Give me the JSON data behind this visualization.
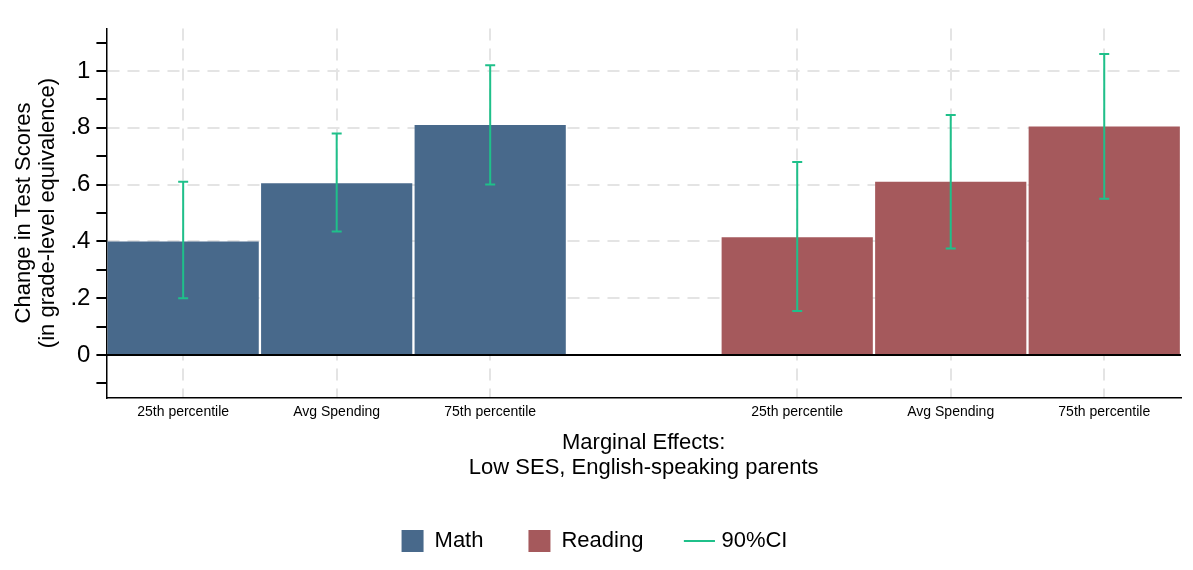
{
  "chart_data": {
    "type": "bar",
    "xlabel": "Marginal Effects:\nLow SES, English-speaking parents",
    "ylabel": "Change in Test Scores\n(in grade-level equivalence)",
    "categories": [
      "25th percentile",
      "Avg Spending",
      "75th percentile",
      null,
      "25th percentile",
      "Avg Spending",
      "75th percentile"
    ],
    "series": [
      {
        "name": "Math",
        "color": "#48698b",
        "values": [
          0.4,
          0.605,
          0.81,
          null,
          null,
          null,
          null
        ],
        "errors": [
          [
            0.2,
            0.61
          ],
          [
            0.435,
            0.78
          ],
          [
            0.6,
            1.02
          ],
          null,
          null,
          null,
          null
        ]
      },
      {
        "name": "Reading",
        "color": "#a5595c",
        "values": [
          null,
          null,
          null,
          null,
          0.415,
          0.61,
          0.805
        ],
        "errors": [
          null,
          null,
          null,
          null,
          [
            0.155,
            0.68
          ],
          [
            0.375,
            0.845
          ],
          [
            0.55,
            1.06
          ]
        ]
      },
      {
        "name": "90%CI",
        "type": "line",
        "color": "#1fc08a",
        "values": [
          null,
          null,
          null,
          null,
          null,
          null,
          null
        ]
      }
    ],
    "ylim": [
      -0.15,
      1.15
    ],
    "yticks": [
      {
        "value": -0.1,
        "label": null
      },
      0,
      {
        "value": 0.1,
        "label": null
      },
      {
        "value": 0.2,
        "label": ".2"
      },
      {
        "value": 0.3,
        "label": null
      },
      {
        "value": 0.4,
        "label": ".4"
      },
      {
        "value": 0.5,
        "label": null
      },
      {
        "value": 0.6,
        "label": ".6"
      },
      {
        "value": 0.7,
        "label": null
      },
      {
        "value": 0.8,
        "label": ".8"
      },
      {
        "value": 0.9,
        "label": null
      },
      1,
      {
        "value": 1.1,
        "label": null
      }
    ],
    "ref_lines": [
      {
        "axis": "y",
        "value": 0,
        "color": "#000000"
      }
    ],
    "grid": true,
    "legend": "bottom"
  }
}
